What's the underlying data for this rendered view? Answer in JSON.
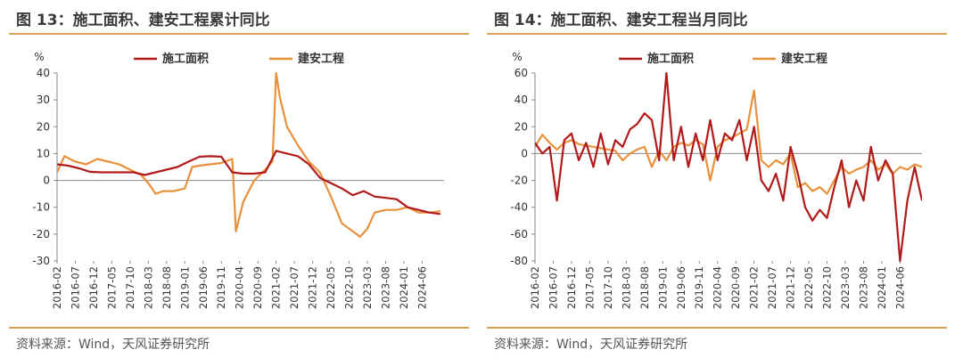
{
  "charts": [
    {
      "title": "图 13：施工面积、建安工程累计同比",
      "source": "资料来源：Wind，天风证券研究所"
    },
    {
      "title": "图 14：施工面积、建安工程当月同比",
      "source": "资料来源：Wind，天风证券研究所"
    }
  ],
  "chart_data": [
    {
      "type": "line",
      "title": "图 13：施工面积、建安工程累计同比",
      "ylabel": "%",
      "ylim": [
        -30,
        40
      ],
      "yticks": [
        40,
        30,
        20,
        10,
        0,
        -10,
        -20,
        -30
      ],
      "xticks": [
        "2016-02",
        "2016-07",
        "2016-12",
        "2017-05",
        "2017-10",
        "2018-03",
        "2018-08",
        "2019-01",
        "2019-06",
        "2019-11",
        "2020-04",
        "2020-09",
        "2021-02",
        "2021-07",
        "2021-12",
        "2022-05",
        "2022-10",
        "2023-03",
        "2023-08",
        "2024-01",
        "2024-06"
      ],
      "legend": "top",
      "grid": false,
      "colors": {
        "施工面积": "#b01a1a",
        "建安工程": "#e8913a"
      },
      "series": [
        {
          "name": "施工面积",
          "x": [
            "2016-02",
            "2016-05",
            "2016-08",
            "2016-11",
            "2017-02",
            "2017-05",
            "2017-08",
            "2017-11",
            "2018-02",
            "2018-05",
            "2018-08",
            "2018-11",
            "2019-02",
            "2019-05",
            "2019-08",
            "2019-11",
            "2020-02",
            "2020-05",
            "2020-08",
            "2020-11",
            "2021-02",
            "2021-05",
            "2021-08",
            "2021-11",
            "2022-02",
            "2022-05",
            "2022-08",
            "2022-11",
            "2023-02",
            "2023-05",
            "2023-08",
            "2023-11",
            "2024-02",
            "2024-05",
            "2024-08",
            "2024-11"
          ],
          "values": [
            6,
            5.5,
            4.5,
            3.2,
            3,
            3,
            3,
            3,
            2,
            3,
            4,
            5,
            7,
            8.8,
            9,
            8.8,
            3,
            2.5,
            2.5,
            3,
            11,
            10,
            9,
            6,
            1,
            -1,
            -3,
            -5.5,
            -4,
            -6,
            -6.5,
            -7,
            -10,
            -11,
            -12,
            -12.5
          ]
        },
        {
          "name": "建安工程",
          "x": [
            "2016-02",
            "2016-04",
            "2016-07",
            "2016-10",
            "2017-01",
            "2017-04",
            "2017-07",
            "2017-10",
            "2018-01",
            "2018-03",
            "2018-05",
            "2018-07",
            "2018-10",
            "2019-01",
            "2019-03",
            "2019-05",
            "2019-08",
            "2019-11",
            "2020-02",
            "2020-03",
            "2020-05",
            "2020-08",
            "2020-11",
            "2021-01",
            "2021-02",
            "2021-03",
            "2021-05",
            "2021-08",
            "2021-11",
            "2022-02",
            "2022-05",
            "2022-08",
            "2022-11",
            "2023-01",
            "2023-03",
            "2023-05",
            "2023-08",
            "2023-11",
            "2024-02",
            "2024-05",
            "2024-08",
            "2024-11"
          ],
          "values": [
            3,
            9,
            7,
            6,
            8,
            7,
            6,
            4,
            2,
            -1,
            -5,
            -4,
            -4,
            -3,
            5,
            5.5,
            6,
            6.5,
            8,
            -19,
            -8,
            0,
            4,
            7,
            40,
            31,
            20,
            13,
            7,
            3,
            -6,
            -16,
            -19,
            -21,
            -18,
            -12,
            -11,
            -11,
            -10,
            -12,
            -12,
            -11.5
          ]
        }
      ]
    },
    {
      "type": "line",
      "title": "图 14：施工面积、建安工程当月同比",
      "ylabel": "%",
      "ylim": [
        -80,
        60
      ],
      "yticks": [
        60,
        40,
        20,
        0,
        -20,
        -40,
        -60,
        -80
      ],
      "xticks": [
        "2016-02",
        "2016-07",
        "2016-12",
        "2017-05",
        "2017-10",
        "2018-03",
        "2018-08",
        "2019-01",
        "2019-06",
        "2019-11",
        "2020-04",
        "2020-09",
        "2021-02",
        "2021-07",
        "2021-12",
        "2022-05",
        "2022-10",
        "2023-03",
        "2023-08",
        "2024-01",
        "2024-06"
      ],
      "legend": "top",
      "grid": false,
      "colors": {
        "施工面积": "#b01a1a",
        "建安工程": "#e8913a"
      },
      "series": [
        {
          "name": "施工面积",
          "x": [
            "2016-02",
            "2016-04",
            "2016-06",
            "2016-08",
            "2016-10",
            "2016-12",
            "2017-02",
            "2017-04",
            "2017-06",
            "2017-08",
            "2017-10",
            "2017-12",
            "2018-02",
            "2018-04",
            "2018-06",
            "2018-08",
            "2018-10",
            "2018-12",
            "2019-02",
            "2019-04",
            "2019-06",
            "2019-08",
            "2019-10",
            "2019-12",
            "2020-02",
            "2020-04",
            "2020-06",
            "2020-08",
            "2020-10",
            "2020-12",
            "2021-02",
            "2021-04",
            "2021-06",
            "2021-08",
            "2021-10",
            "2021-12",
            "2022-02",
            "2022-04",
            "2022-06",
            "2022-08",
            "2022-10",
            "2022-12",
            "2023-02",
            "2023-04",
            "2023-06",
            "2023-08",
            "2023-10",
            "2023-12",
            "2024-02",
            "2024-04",
            "2024-06",
            "2024-08",
            "2024-10",
            "2024-12"
          ],
          "values": [
            8,
            0,
            5,
            -35,
            10,
            15,
            -5,
            8,
            -10,
            15,
            -8,
            10,
            5,
            18,
            22,
            30,
            25,
            -5,
            60,
            -5,
            20,
            -10,
            15,
            -5,
            25,
            -5,
            15,
            10,
            25,
            -5,
            20,
            -20,
            -28,
            -15,
            -35,
            5,
            -15,
            -40,
            -50,
            -42,
            -48,
            -25,
            -5,
            -40,
            -20,
            -35,
            5,
            -20,
            -5,
            -15,
            -80,
            -35,
            -10,
            -35
          ]
        },
        {
          "name": "建安工程",
          "x": [
            "2016-02",
            "2016-04",
            "2016-06",
            "2016-08",
            "2016-10",
            "2016-12",
            "2017-02",
            "2017-04",
            "2017-06",
            "2017-08",
            "2017-10",
            "2017-12",
            "2018-02",
            "2018-04",
            "2018-06",
            "2018-08",
            "2018-10",
            "2018-12",
            "2019-02",
            "2019-04",
            "2019-06",
            "2019-08",
            "2019-10",
            "2019-12",
            "2020-02",
            "2020-04",
            "2020-06",
            "2020-08",
            "2020-10",
            "2020-12",
            "2021-02",
            "2021-04",
            "2021-06",
            "2021-08",
            "2021-10",
            "2021-12",
            "2022-02",
            "2022-04",
            "2022-06",
            "2022-08",
            "2022-10",
            "2022-12",
            "2023-02",
            "2023-04",
            "2023-06",
            "2023-08",
            "2023-10",
            "2023-12",
            "2024-02",
            "2024-04",
            "2024-06",
            "2024-08",
            "2024-10",
            "2024-12"
          ],
          "values": [
            5,
            14,
            8,
            3,
            8,
            10,
            7,
            6,
            5,
            4,
            3,
            2,
            -5,
            0,
            3,
            5,
            -10,
            2,
            -5,
            5,
            8,
            6,
            10,
            7,
            -20,
            5,
            10,
            12,
            15,
            18,
            47,
            -5,
            -10,
            -5,
            -8,
            0,
            -25,
            -22,
            -28,
            -25,
            -30,
            -20,
            -10,
            -15,
            -12,
            -10,
            -5,
            -12,
            -8,
            -15,
            -10,
            -12,
            -8,
            -10
          ]
        }
      ]
    }
  ]
}
